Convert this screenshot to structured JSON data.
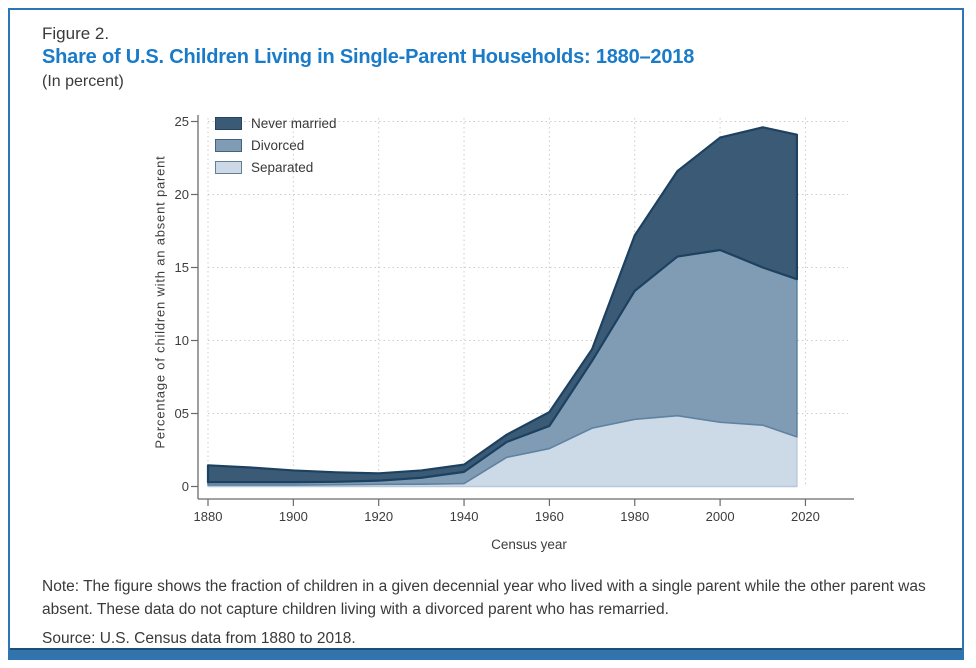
{
  "figure": {
    "label": "Figure 2.",
    "title": "Share of U.S. Children Living in Single-Parent Households: 1880–2018",
    "subtitle": "(In percent)"
  },
  "chart_data": {
    "type": "area",
    "stacked": true,
    "xlabel": "Census year",
    "ylabel": "Percentage of children with an absent parent",
    "x": [
      1880,
      1890,
      1900,
      1910,
      1920,
      1930,
      1940,
      1950,
      1960,
      1970,
      1980,
      1990,
      2000,
      2010,
      2018
    ],
    "series": [
      {
        "name": "Separated",
        "fill": "#ccd9e6",
        "stroke": "#b7c8d8",
        "stroke_width": 1.4,
        "values": [
          0.1,
          0.1,
          0.1,
          0.12,
          0.15,
          0.16,
          0.2,
          2.0,
          2.6,
          4.0,
          4.6,
          4.85,
          4.4,
          4.2,
          3.4
        ]
      },
      {
        "name": "Divorced",
        "fill": "#7f9cb4",
        "stroke": "#5f82a1",
        "stroke_width": 1.6,
        "values": [
          0.2,
          0.2,
          0.2,
          0.2,
          0.25,
          0.44,
          0.8,
          1.05,
          1.55,
          4.6,
          8.8,
          10.9,
          11.8,
          10.8,
          10.8
        ]
      },
      {
        "name": "Never married",
        "fill": "#3b5a75",
        "stroke": "#1d4161",
        "stroke_width": 2.2,
        "values": [
          1.15,
          1.0,
          0.8,
          0.65,
          0.5,
          0.5,
          0.5,
          0.5,
          0.95,
          0.8,
          3.8,
          5.85,
          7.7,
          9.6,
          9.9
        ]
      }
    ],
    "legend_order": [
      "Never married",
      "Divorced",
      "Separated"
    ],
    "legend_position": "top-left",
    "x_ticks": [
      1880,
      1900,
      1920,
      1940,
      1960,
      1980,
      2000,
      2020
    ],
    "y_ticks": [
      0,
      5,
      10,
      15,
      20,
      25
    ],
    "y_tick_labels": [
      "0",
      "05",
      "10",
      "15",
      "20",
      "25"
    ],
    "xlim": [
      1880,
      2020
    ],
    "ylim": [
      0,
      25
    ],
    "grid": "dotted"
  },
  "note": {
    "text": "Note: The figure shows the fraction of children in a given decennial year who lived with a single parent while the other parent was absent. These data do not capture children living with a divorced parent who has remarried."
  },
  "source": {
    "text": "Source: U.S. Census data from 1880 to 2018."
  },
  "colors": {
    "title_blue": "#1a7bc9",
    "frame_border": "#2e75b6",
    "footer_bar": "#3173aa",
    "footer_bar_edge": "#1d4e79",
    "axis": "#6a6a6a",
    "gridline": "#cccccc",
    "text": "#3a3a3a"
  }
}
